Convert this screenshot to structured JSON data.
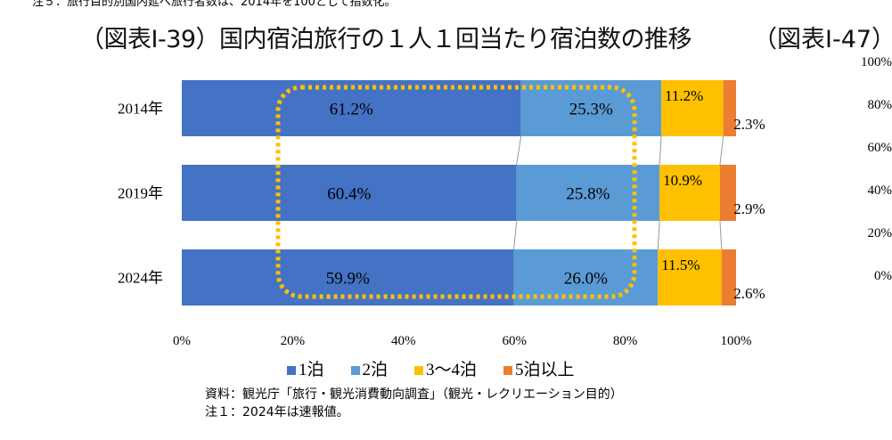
{
  "top_note": "注５：旅行目的別国内延べ旅行者数は、2014年を100として指数化。",
  "title": "（図表Ⅰ-39）国内宿泊旅行の１人１回当たり宿泊数の推移",
  "title_right": "（図表Ⅰ-47）",
  "right_ticks": [
    "100%",
    "80%",
    "60%",
    "40%",
    "20%",
    "0%"
  ],
  "source": "資料：観光庁「旅行・観光消費動向調査」（観光・レクリエーション目的）",
  "note1": "注１：2024年は速報値。",
  "chart_data": {
    "type": "bar",
    "orientation": "horizontal-stacked-100",
    "categories": [
      "2014年",
      "2019年",
      "2024年"
    ],
    "series": [
      {
        "name": "1泊",
        "color": "#4472C4",
        "values": [
          61.2,
          60.4,
          59.9
        ],
        "labels": [
          "61.2%",
          "60.4%",
          "59.9%"
        ]
      },
      {
        "name": "2泊",
        "color": "#5B9BD5",
        "values": [
          25.3,
          25.8,
          26.0
        ],
        "labels": [
          "25.3%",
          "25.8%",
          "26.0%"
        ]
      },
      {
        "name": "3〜4泊",
        "color": "#FFC000",
        "values": [
          11.2,
          10.9,
          11.5
        ],
        "labels": [
          "11.2%",
          "10.9%",
          "11.5%"
        ]
      },
      {
        "name": "5泊以上",
        "color": "#ED7D31",
        "values": [
          2.3,
          2.9,
          2.6
        ],
        "labels": [
          "2.3%",
          "2.9%",
          "2.6%"
        ]
      }
    ],
    "xticks": [
      "0%",
      "20%",
      "40%",
      "60%",
      "80%",
      "100%"
    ],
    "xlim": [
      0,
      100
    ],
    "legend": "bottom",
    "highlight_color": "#FFC000"
  }
}
